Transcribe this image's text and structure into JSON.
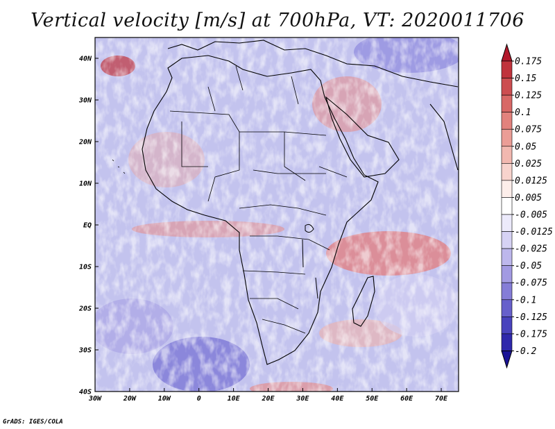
{
  "title": "Vertical velocity [m/s] at 700hPa, VT: 2020011706",
  "credit": "GrADS: IGES/COLA",
  "map": {
    "lon_range": [
      -30,
      75
    ],
    "lat_range": [
      -40,
      45
    ],
    "lat_ticks": [
      {
        "value": 40,
        "label": "40N"
      },
      {
        "value": 30,
        "label": "30N"
      },
      {
        "value": 20,
        "label": "20N"
      },
      {
        "value": 10,
        "label": "10N"
      },
      {
        "value": 0,
        "label": "EQ"
      },
      {
        "value": -10,
        "label": "10S"
      },
      {
        "value": -20,
        "label": "20S"
      },
      {
        "value": -30,
        "label": "30S"
      },
      {
        "value": -40,
        "label": "40S"
      }
    ],
    "lon_ticks": [
      {
        "value": -30,
        "label": "30W"
      },
      {
        "value": -20,
        "label": "20W"
      },
      {
        "value": -10,
        "label": "10W"
      },
      {
        "value": 0,
        "label": "0"
      },
      {
        "value": 10,
        "label": "10E"
      },
      {
        "value": 20,
        "label": "20E"
      },
      {
        "value": 30,
        "label": "30E"
      },
      {
        "value": 40,
        "label": "40E"
      },
      {
        "value": 50,
        "label": "50E"
      },
      {
        "value": 60,
        "label": "60E"
      },
      {
        "value": 70,
        "label": "70E"
      }
    ]
  },
  "colorbar": {
    "labels": [
      "0.175",
      "0.15",
      "0.125",
      "0.1",
      "0.075",
      "0.05",
      "0.025",
      "0.0125",
      "0.005",
      "-0.005",
      "-0.0125",
      "-0.025",
      "-0.05",
      "-0.075",
      "-0.1",
      "-0.125",
      "-0.175",
      "-0.2"
    ],
    "colors": [
      "#b2182b",
      "#c0333c",
      "#cc4d50",
      "#d86866",
      "#e2827d",
      "#eb9d96",
      "#f2b8b0",
      "#f8d3cd",
      "#fdeeea",
      "#ffffff",
      "#eceafb",
      "#d6d2f4",
      "#bdb7ec",
      "#a29ae2",
      "#857dd7",
      "#6760cb",
      "#4943bd",
      "#2f28ab",
      "#1a1396"
    ]
  }
}
